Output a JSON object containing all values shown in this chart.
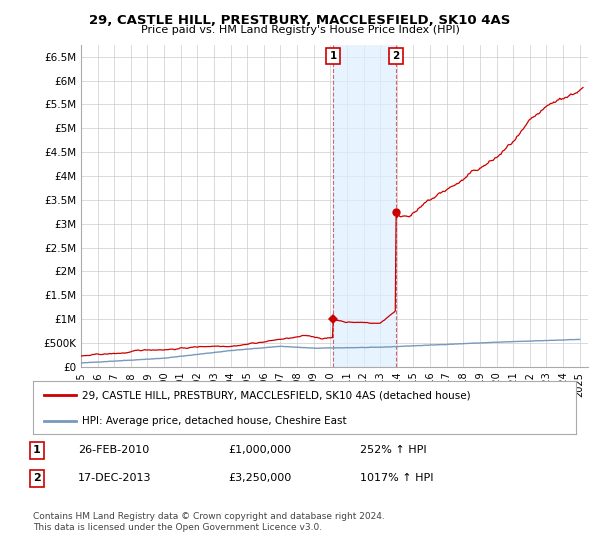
{
  "title": "29, CASTLE HILL, PRESTBURY, MACCLESFIELD, SK10 4AS",
  "subtitle": "Price paid vs. HM Land Registry's House Price Index (HPI)",
  "ylabel_ticks": [
    "£0",
    "£500K",
    "£1M",
    "£1.5M",
    "£2M",
    "£2.5M",
    "£3M",
    "£3.5M",
    "£4M",
    "£4.5M",
    "£5M",
    "£5.5M",
    "£6M",
    "£6.5M"
  ],
  "ytick_values": [
    0,
    500000,
    1000000,
    1500000,
    2000000,
    2500000,
    3000000,
    3500000,
    4000000,
    4500000,
    5000000,
    5500000,
    6000000,
    6500000
  ],
  "ylim": [
    0,
    6750000
  ],
  "xlim_start": 1995.0,
  "xlim_end": 2025.5,
  "xtick_years": [
    1995,
    1996,
    1997,
    1998,
    1999,
    2000,
    2001,
    2002,
    2003,
    2004,
    2005,
    2006,
    2007,
    2008,
    2009,
    2010,
    2011,
    2012,
    2013,
    2014,
    2015,
    2016,
    2017,
    2018,
    2019,
    2020,
    2021,
    2022,
    2023,
    2024,
    2025
  ],
  "marker1_x": 2010.16,
  "marker1_y": 1000000,
  "marker2_x": 2013.96,
  "marker2_y": 3250000,
  "red_color": "#cc0000",
  "blue_color": "#7799bb",
  "highlight_box_color": "#ddeeff",
  "highlight_box_border": "#cc6677",
  "grid_color": "#cccccc",
  "background_color": "#ffffff",
  "legend_line1": "29, CASTLE HILL, PRESTBURY, MACCLESFIELD, SK10 4AS (detached house)",
  "legend_line2": "HPI: Average price, detached house, Cheshire East",
  "annotation1_num": "1",
  "annotation1_date": "26-FEB-2010",
  "annotation1_price": "£1,000,000",
  "annotation1_hpi": "252% ↑ HPI",
  "annotation2_num": "2",
  "annotation2_date": "17-DEC-2013",
  "annotation2_price": "£3,250,000",
  "annotation2_hpi": "1017% ↑ HPI",
  "footer": "Contains HM Land Registry data © Crown copyright and database right 2024.\nThis data is licensed under the Open Government Licence v3.0."
}
